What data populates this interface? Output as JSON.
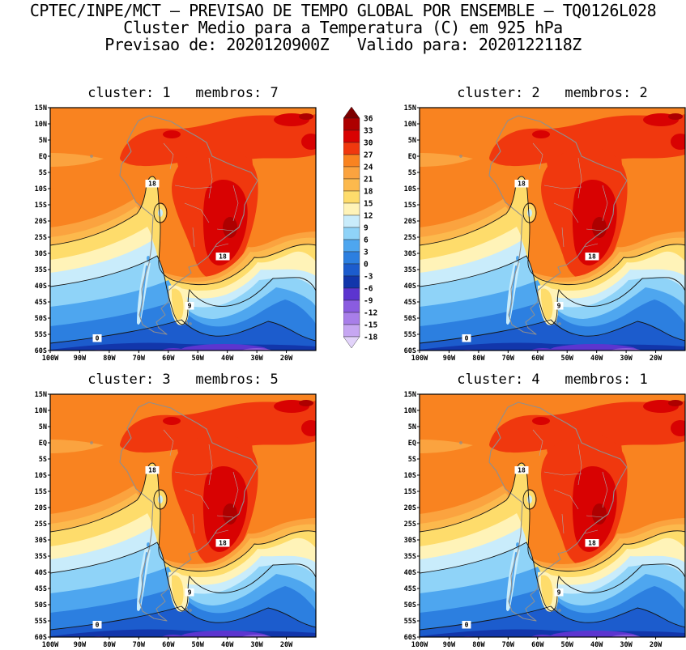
{
  "header": {
    "line1": "CPTEC/INPE/MCT — PREVISAO DE TEMPO GLOBAL POR ENSEMBLE — TQ0126L028",
    "line2": "Cluster Medio para a Temperatura (C) em 925 hPa",
    "line3": "Previsao de: 2020120900Z   Valido para: 2020122118Z"
  },
  "panels": [
    {
      "title": "cluster: 1   membros: 7",
      "cluster": 1,
      "membros": 7
    },
    {
      "title": "cluster: 2   membros: 2",
      "cluster": 2,
      "membros": 2
    },
    {
      "title": "cluster: 3   membros: 5",
      "cluster": 3,
      "membros": 5
    },
    {
      "title": "cluster: 4   membros: 1",
      "cluster": 4,
      "membros": 1
    }
  ],
  "axes": {
    "lat_labels": [
      "15N",
      "10N",
      "5N",
      "EQ",
      "5S",
      "10S",
      "15S",
      "20S",
      "25S",
      "30S",
      "35S",
      "40S",
      "45S",
      "50S",
      "55S",
      "60S"
    ],
    "lon_labels": [
      "100W",
      "90W",
      "80W",
      "70W",
      "60W",
      "50W",
      "40W",
      "30W",
      "20W"
    ]
  },
  "colorbar": {
    "tick_labels": [
      "36",
      "33",
      "30",
      "27",
      "24",
      "21",
      "18",
      "15",
      "12",
      "9",
      "6",
      "3",
      "0",
      "-3",
      "-6",
      "-9",
      "-12",
      "-15",
      "-18"
    ],
    "band_colors_top_to_bottom": [
      "#7d0000",
      "#ad0000",
      "#d80202",
      "#f0380e",
      "#f98320",
      "#fba33f",
      "#fcb94d",
      "#fedc6b",
      "#fff3b8",
      "#c9ecfb",
      "#8fd3f8",
      "#4ea6ef",
      "#2c7fe0",
      "#1c5ccd",
      "#1236ab",
      "#5c35cf",
      "#8a5ce0",
      "#a87ee9",
      "#c6a6f2",
      "#e2d3fa"
    ]
  },
  "contour_labels": [
    "18",
    "18",
    "9",
    "0"
  ],
  "colors": {
    "background": "#ffffff",
    "text": "#000000",
    "coastline": "#8f8f8f",
    "bands": {
      "33_36": "#ad0000",
      "30_33": "#d80202",
      "27_30": "#f0380e",
      "24_27": "#f98320",
      "21_24": "#fba33f",
      "18_21": "#fcb94d",
      "15_18": "#fedc6b",
      "12_15": "#fff3b8",
      "9_12": "#c9ecfb",
      "6_9": "#8fd3f8",
      "3_6": "#4ea6ef",
      "0_3": "#2c7fe0",
      "m3_0": "#1c5ccd",
      "m6_m3": "#1236ab",
      "m9_m6": "#5c35cf",
      "m12_m9": "#8a5ce0"
    }
  },
  "chart_data": {
    "type": "heatmap",
    "title": "Cluster Medio para a Temperatura (C) em 925 hPa",
    "source": "CPTEC/INPE/MCT — PREVISAO DE TEMPO GLOBAL POR ENSEMBLE — TQ0126L028",
    "forecast_init": "2020120900Z",
    "forecast_valid": "2020122118Z",
    "variable": "Temperatura",
    "units": "C",
    "level_hpa": 925,
    "region": {
      "lon_range": [
        "100W",
        "20W"
      ],
      "lat_range": [
        "15N",
        "60S"
      ]
    },
    "colorbar_levels_c": [
      36,
      33,
      30,
      27,
      24,
      21,
      18,
      15,
      12,
      9,
      6,
      3,
      0,
      -3,
      -6,
      -9,
      -12,
      -15,
      -18
    ],
    "labeled_contours_c": [
      18,
      9,
      0
    ],
    "panels": [
      {
        "cluster": 1,
        "membros": 7
      },
      {
        "cluster": 2,
        "membros": 2
      },
      {
        "cluster": 3,
        "membros": 5
      },
      {
        "cluster": 4,
        "membros": 1
      }
    ],
    "legend_position": "vertical colorbar between top two panels",
    "grid": false
  }
}
